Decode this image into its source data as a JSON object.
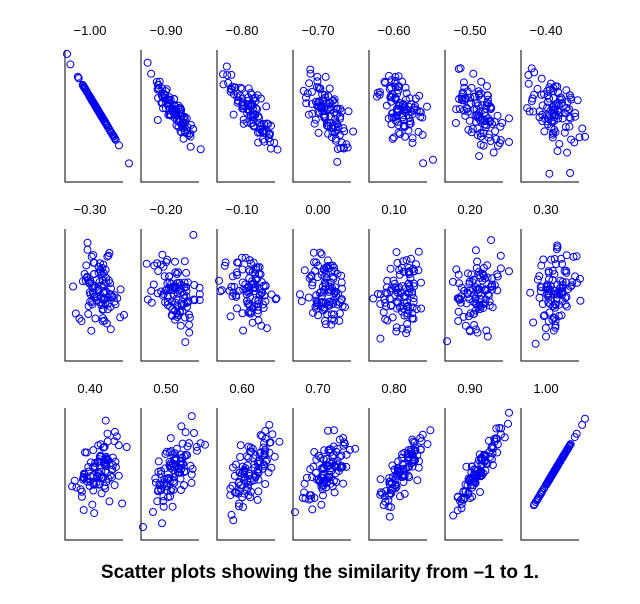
{
  "caption": "Scatter plots showing the similarity from –1 to 1.",
  "colors": {
    "points": "#0000ee",
    "axes": "#000000"
  },
  "chart_data": {
    "type": "scatter",
    "layout": "small multiples, 3 rows x 7 columns",
    "axes": "left and bottom axis lines only, no ticks or tick labels",
    "grid": false,
    "marker": "open circle",
    "points_per_panel": 100,
    "panels": [
      {
        "label": "−1.00",
        "correlation": -1.0
      },
      {
        "label": "−0.90",
        "correlation": -0.9
      },
      {
        "label": "−0.80",
        "correlation": -0.8
      },
      {
        "label": "−0.70",
        "correlation": -0.7
      },
      {
        "label": "−0.60",
        "correlation": -0.6
      },
      {
        "label": "−0.50",
        "correlation": -0.5
      },
      {
        "label": "−0.40",
        "correlation": -0.4
      },
      {
        "label": "−0.30",
        "correlation": -0.3
      },
      {
        "label": "−0.20",
        "correlation": -0.2
      },
      {
        "label": "−0.10",
        "correlation": -0.1
      },
      {
        "label": "0.00",
        "correlation": 0.0
      },
      {
        "label": "0.10",
        "correlation": 0.1
      },
      {
        "label": "0.20",
        "correlation": 0.2
      },
      {
        "label": "0.30",
        "correlation": 0.3
      },
      {
        "label": "0.40",
        "correlation": 0.4
      },
      {
        "label": "0.50",
        "correlation": 0.5
      },
      {
        "label": "0.60",
        "correlation": 0.6
      },
      {
        "label": "0.70",
        "correlation": 0.7
      },
      {
        "label": "0.80",
        "correlation": 0.8
      },
      {
        "label": "0.90",
        "correlation": 0.9
      },
      {
        "label": "1.00",
        "correlation": 1.0
      }
    ]
  }
}
